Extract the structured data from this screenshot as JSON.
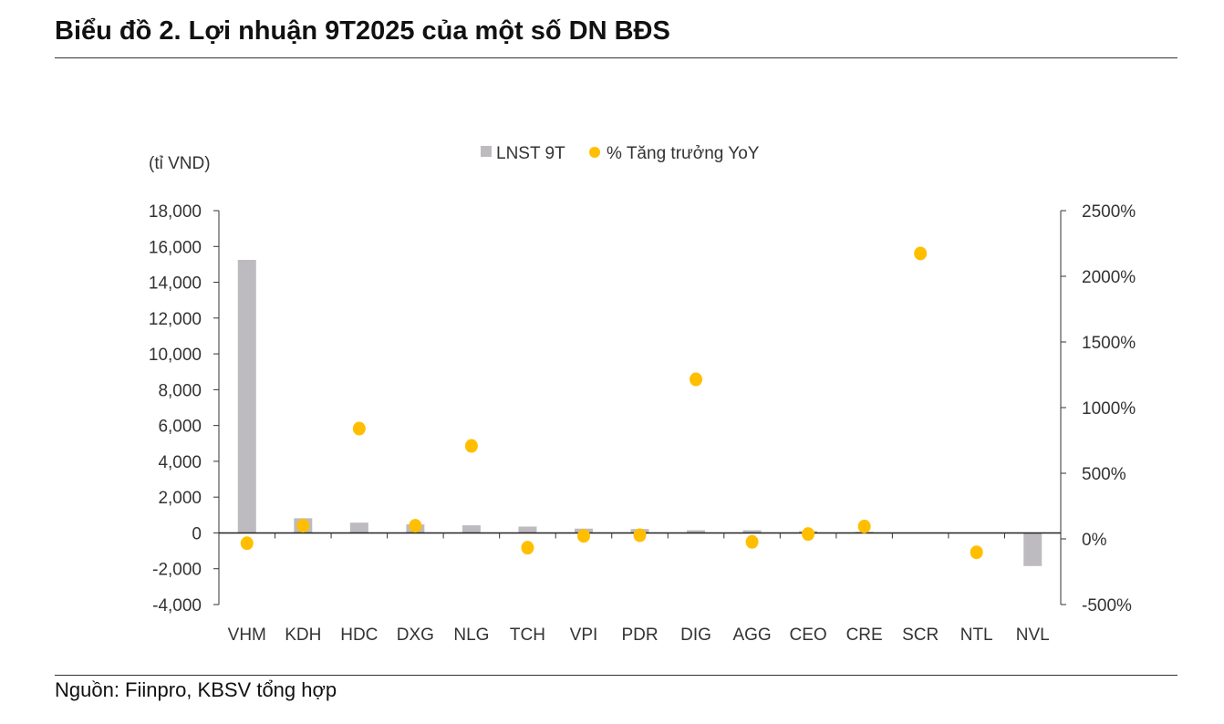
{
  "title": "Biểu đồ 2. Lợi nhuận 9T2025 của một số DN BĐS",
  "source": "Nguồn: Fiinpro, KBSV tổng hợp",
  "chart_data": {
    "type": "bar+scatter",
    "unit_label": "(tỉ VND)",
    "categories": [
      "VHM",
      "KDH",
      "HDC",
      "DXG",
      "NLG",
      "TCH",
      "VPI",
      "PDR",
      "DIG",
      "AGG",
      "CEO",
      "CRE",
      "SCR",
      "NTL",
      "NVL"
    ],
    "series": [
      {
        "name": "LNST 9T",
        "type": "bar",
        "axis": "left",
        "color": "#bdbbbf",
        "values": [
          15250,
          820,
          575,
          475,
          425,
          355,
          240,
          220,
          150,
          150,
          100,
          60,
          0,
          0,
          -1850
        ]
      },
      {
        "name": "% Tăng trưởng YoY",
        "type": "scatter",
        "axis": "right",
        "color": "#ffbf00",
        "values": [
          -33,
          100,
          840,
          100,
          708,
          -67,
          23,
          28,
          1215,
          -23,
          37,
          95,
          2174,
          -102,
          null
        ]
      }
    ],
    "left_axis": {
      "ylim": [
        -4000,
        18000
      ],
      "ticks": [
        "-4,000",
        "-2,000",
        "0",
        "2,000",
        "4,000",
        "6,000",
        "8,000",
        "10,000",
        "12,000",
        "14,000",
        "16,000",
        "18,000"
      ]
    },
    "right_axis": {
      "ylim": [
        -500,
        2500
      ],
      "ticks": [
        "-500%",
        "0%",
        "500%",
        "1000%",
        "1500%",
        "2000%",
        "2500%"
      ]
    },
    "legend": "top-center",
    "grid": false
  }
}
